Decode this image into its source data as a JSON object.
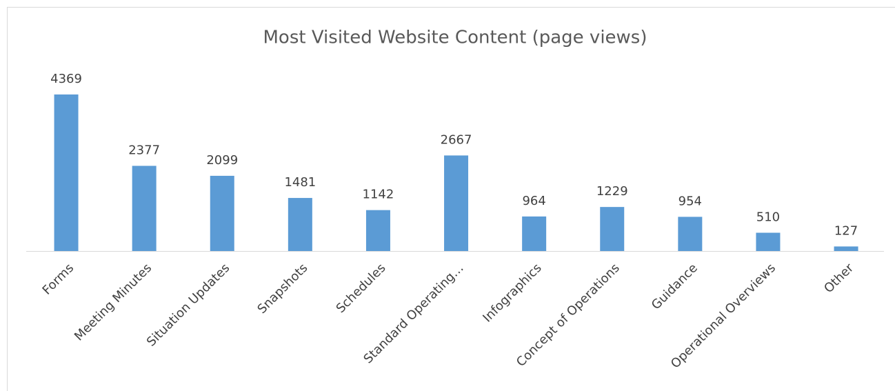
{
  "chart_data": {
    "type": "bar",
    "title": "Most Visited Website Content (page views)",
    "categories": [
      "Forms",
      "Meeting Minutes",
      "Situation Updates",
      "Snapshots",
      "Schedules",
      "Standard Operating…",
      "Infographics",
      "Concept of Operations",
      "Guidance",
      "Operational Overviews",
      "Other"
    ],
    "values": [
      4369,
      2377,
      2099,
      1481,
      1142,
      2667,
      964,
      1229,
      954,
      510,
      127
    ],
    "color": "#5b9bd5"
  }
}
